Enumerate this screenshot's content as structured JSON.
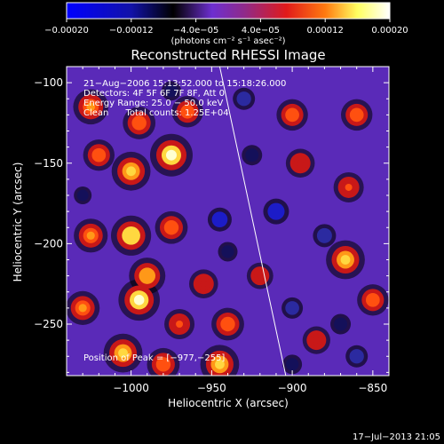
{
  "chart_data": {
    "type": "heatmap",
    "title": "Reconstructed RHESSI Image",
    "xlabel": "Heliocentric X (arcsec)",
    "ylabel": "Heliocentric Y (arcsec)",
    "xlim": [
      -1040,
      -840
    ],
    "ylim": [
      -282,
      -90
    ],
    "x_ticks": [
      -1000,
      -950,
      -900,
      -850
    ],
    "x_tick_labels": [
      "−1000",
      "−950",
      "−900",
      "−850"
    ],
    "y_ticks": [
      -100,
      -150,
      -200,
      -250
    ],
    "y_tick_labels": [
      "−100",
      "−150",
      "−200",
      "−250"
    ],
    "colorbar": {
      "min": -0.0002,
      "max": 0.0002,
      "ticks": [
        -0.0002,
        -0.00012,
        -4e-05,
        4e-05,
        0.00012,
        0.0002
      ],
      "tick_labels": [
        "−0.00020",
        "−0.00012",
        "−4.0e−05",
        "4.0e−05",
        "0.00012",
        "0.00020"
      ],
      "units": "(photons cm⁻² s⁻¹ asec⁻²)",
      "colormap": [
        "#0000ff",
        "#1010b0",
        "#000000",
        "#6d2fd0",
        "#8f2a8a",
        "#e11a1a",
        "#ff7a10",
        "#ffff60",
        "#ffffff"
      ]
    },
    "annotations": [
      "21−Aug−2006 15:13:52.000 to 15:18:26.000",
      "Detectors: 4F 5F 6F 7F 8F, Att 0",
      "Energy Range: 25.0 − 50.0 keV",
      "Clean      Total counts: 1.25E+04"
    ],
    "peak_label": "Position of Peak = [−977,−255]",
    "limb_line": [
      [
        -945,
        -90
      ],
      [
        -904,
        -282
      ]
    ],
    "sources": [
      {
        "x": -1025,
        "y": -115,
        "v": 0.7
      },
      {
        "x": -1020,
        "y": -145,
        "v": 0.55
      },
      {
        "x": -1000,
        "y": -155,
        "v": 0.85
      },
      {
        "x": -995,
        "y": -125,
        "v": 0.6
      },
      {
        "x": -975,
        "y": -145,
        "v": 1.0
      },
      {
        "x": -965,
        "y": -118,
        "v": 0.55
      },
      {
        "x": -1025,
        "y": -195,
        "v": 0.65
      },
      {
        "x": -1000,
        "y": -195,
        "v": 0.9
      },
      {
        "x": -975,
        "y": -190,
        "v": 0.6
      },
      {
        "x": -990,
        "y": -220,
        "v": 0.75
      },
      {
        "x": -995,
        "y": -235,
        "v": 0.95
      },
      {
        "x": -1030,
        "y": -240,
        "v": 0.65
      },
      {
        "x": -970,
        "y": -250,
        "v": 0.5
      },
      {
        "x": -1005,
        "y": -268,
        "v": 0.85
      },
      {
        "x": -980,
        "y": -275,
        "v": 0.6
      },
      {
        "x": -945,
        "y": -275,
        "v": 0.85
      },
      {
        "x": -940,
        "y": -250,
        "v": 0.6
      },
      {
        "x": -955,
        "y": -225,
        "v": 0.45
      },
      {
        "x": -900,
        "y": -120,
        "v": 0.55
      },
      {
        "x": -895,
        "y": -150,
        "v": 0.45
      },
      {
        "x": -860,
        "y": -120,
        "v": 0.55
      },
      {
        "x": -865,
        "y": -165,
        "v": 0.5
      },
      {
        "x": -867,
        "y": -210,
        "v": 0.85
      },
      {
        "x": -850,
        "y": -235,
        "v": 0.55
      },
      {
        "x": -920,
        "y": -220,
        "v": 0.35
      },
      {
        "x": -885,
        "y": -260,
        "v": 0.4
      },
      {
        "x": -930,
        "y": -110,
        "v": -0.45
      },
      {
        "x": -925,
        "y": -145,
        "v": -0.35
      },
      {
        "x": -945,
        "y": -185,
        "v": -0.55
      },
      {
        "x": -910,
        "y": -180,
        "v": -0.65
      },
      {
        "x": -880,
        "y": -195,
        "v": -0.5
      },
      {
        "x": -900,
        "y": -240,
        "v": -0.4
      },
      {
        "x": -870,
        "y": -250,
        "v": -0.35
      },
      {
        "x": -860,
        "y": -270,
        "v": -0.45
      },
      {
        "x": -940,
        "y": -205,
        "v": -0.3
      },
      {
        "x": -975,
        "y": -105,
        "v": -0.3
      },
      {
        "x": -1030,
        "y": -170,
        "v": -0.2
      },
      {
        "x": -900,
        "y": -275,
        "v": -0.3
      }
    ]
  },
  "footer": {
    "timestamp": "17−Jul−2013 21:05"
  }
}
